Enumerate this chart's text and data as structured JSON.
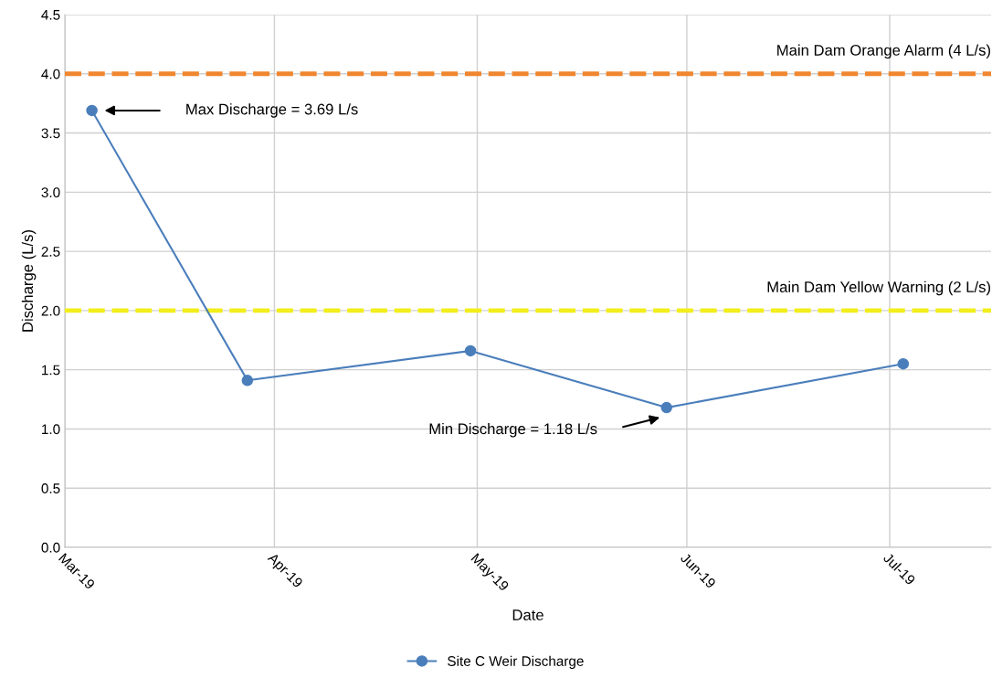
{
  "chart_data": {
    "type": "line",
    "xlabel": "Date",
    "ylabel": "Discharge (L/s)",
    "x": [
      "2019-03-05",
      "2019-03-28",
      "2019-04-30",
      "2019-05-29",
      "2019-07-03"
    ],
    "series": [
      {
        "name": "Site C Weir Discharge",
        "color": "#4a7ebb",
        "values": [
          3.69,
          1.41,
          1.66,
          1.18,
          1.55
        ]
      }
    ],
    "xlim": [
      "2019-03-01",
      "2019-07-16"
    ],
    "xticks": [
      {
        "value": "2019-03-01",
        "label": "Mar-19"
      },
      {
        "value": "2019-04-01",
        "label": "Apr-19"
      },
      {
        "value": "2019-05-01",
        "label": "May-19"
      },
      {
        "value": "2019-06-01",
        "label": "Jun-19"
      },
      {
        "value": "2019-07-01",
        "label": "Jul-19"
      }
    ],
    "ylim": [
      0,
      4.5
    ],
    "yticks": [
      {
        "value": 0,
        "label": "0.0"
      },
      {
        "value": 0.5,
        "label": "0.5"
      },
      {
        "value": 1,
        "label": "1.0"
      },
      {
        "value": 1.5,
        "label": "1.5"
      },
      {
        "value": 2,
        "label": "2.0"
      },
      {
        "value": 2.5,
        "label": "2.5"
      },
      {
        "value": 3,
        "label": "3.0"
      },
      {
        "value": 3.5,
        "label": "3.5"
      },
      {
        "value": 4,
        "label": "4.0"
      },
      {
        "value": 4.5,
        "label": "4.5"
      }
    ],
    "ref_lines": [
      {
        "axis": "y",
        "value": 4,
        "label": "Main Dam Orange Alarm (4 L/s)",
        "color": "#f0862f",
        "line_style": "dashed"
      },
      {
        "axis": "y",
        "value": 2,
        "label": "Main Dam Yellow Warning (2 L/s)",
        "color": "#f2ee1a",
        "line_style": "dashed"
      }
    ],
    "annotations": [
      "Max Discharge = 3.69 L/s",
      "Min Discharge = 1.18 L/s"
    ],
    "grid": true,
    "legend": "bottom",
    "marker": "circle",
    "line_style": "solid"
  }
}
